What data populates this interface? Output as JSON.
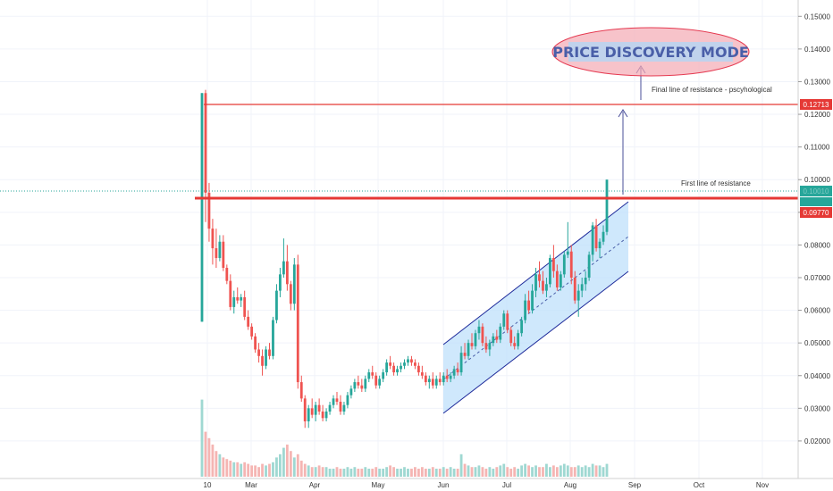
{
  "chart_data": {
    "type": "candlestick",
    "x_ticks": [
      "10",
      "Mar",
      "Apr",
      "May",
      "Jun",
      "Jul",
      "Aug",
      "Sep",
      "Oct",
      "Nov"
    ],
    "y_ticks": [
      "0.15000",
      "0.14000",
      "0.13000",
      "0.12000",
      "0.11000",
      "0.10000",
      "0.09000",
      "0.08000",
      "0.07000",
      "0.06000",
      "0.05000",
      "0.04000",
      "0.03000",
      "0.02000"
    ],
    "ylim": [
      0.0085,
      0.155
    ],
    "resistance_levels": [
      {
        "label": "Final line of resistance - pscyhological",
        "value": 0.12713,
        "value_label": "0.12713"
      },
      {
        "label": "First line of resistance",
        "value": 0.0977,
        "value_label": "0.09770"
      }
    ],
    "current_price_label": "0.10010",
    "title_badge": "PRICE DISCOVERY MODE",
    "candles": [
      [
        0.0565,
        0.1265,
        0.0565,
        0.1265
      ],
      [
        0.1265,
        0.1275,
        0.087,
        0.096
      ],
      [
        0.096,
        0.099,
        0.081,
        0.085
      ],
      [
        0.085,
        0.088,
        0.074,
        0.079
      ],
      [
        0.079,
        0.085,
        0.073,
        0.076
      ],
      [
        0.076,
        0.083,
        0.075,
        0.081
      ],
      [
        0.081,
        0.083,
        0.072,
        0.073
      ],
      [
        0.073,
        0.074,
        0.068,
        0.069
      ],
      [
        0.069,
        0.071,
        0.06,
        0.061
      ],
      [
        0.061,
        0.066,
        0.059,
        0.064
      ],
      [
        0.064,
        0.067,
        0.062,
        0.063
      ],
      [
        0.063,
        0.065,
        0.061,
        0.064
      ],
      [
        0.064,
        0.066,
        0.057,
        0.058
      ],
      [
        0.058,
        0.06,
        0.054,
        0.055
      ],
      [
        0.055,
        0.056,
        0.051,
        0.052
      ],
      [
        0.052,
        0.053,
        0.047,
        0.048
      ],
      [
        0.048,
        0.05,
        0.044,
        0.046
      ],
      [
        0.046,
        0.048,
        0.04,
        0.043
      ],
      [
        0.043,
        0.049,
        0.042,
        0.048
      ],
      [
        0.048,
        0.05,
        0.045,
        0.046
      ],
      [
        0.046,
        0.058,
        0.045,
        0.057
      ],
      [
        0.057,
        0.068,
        0.056,
        0.066
      ],
      [
        0.066,
        0.073,
        0.064,
        0.071
      ],
      [
        0.071,
        0.082,
        0.07,
        0.075
      ],
      [
        0.075,
        0.08,
        0.066,
        0.068
      ],
      [
        0.068,
        0.069,
        0.06,
        0.062
      ],
      [
        0.062,
        0.076,
        0.06,
        0.074
      ],
      [
        0.074,
        0.077,
        0.036,
        0.038
      ],
      [
        0.038,
        0.04,
        0.032,
        0.033
      ],
      [
        0.033,
        0.034,
        0.024,
        0.026
      ],
      [
        0.026,
        0.031,
        0.024,
        0.03
      ],
      [
        0.03,
        0.033,
        0.027,
        0.028
      ],
      [
        0.028,
        0.032,
        0.026,
        0.031
      ],
      [
        0.031,
        0.033,
        0.028,
        0.029
      ],
      [
        0.029,
        0.031,
        0.026,
        0.027
      ],
      [
        0.027,
        0.03,
        0.026,
        0.029
      ],
      [
        0.029,
        0.032,
        0.028,
        0.031
      ],
      [
        0.031,
        0.034,
        0.03,
        0.033
      ],
      [
        0.033,
        0.035,
        0.031,
        0.032
      ],
      [
        0.032,
        0.034,
        0.028,
        0.029
      ],
      [
        0.029,
        0.032,
        0.028,
        0.031
      ],
      [
        0.031,
        0.035,
        0.03,
        0.034
      ],
      [
        0.034,
        0.037,
        0.033,
        0.036
      ],
      [
        0.036,
        0.039,
        0.035,
        0.038
      ],
      [
        0.038,
        0.04,
        0.036,
        0.037
      ],
      [
        0.037,
        0.039,
        0.035,
        0.036
      ],
      [
        0.036,
        0.04,
        0.035,
        0.039
      ],
      [
        0.039,
        0.042,
        0.038,
        0.041
      ],
      [
        0.041,
        0.043,
        0.039,
        0.04
      ],
      [
        0.04,
        0.041,
        0.036,
        0.037
      ],
      [
        0.037,
        0.04,
        0.036,
        0.039
      ],
      [
        0.039,
        0.042,
        0.038,
        0.041
      ],
      [
        0.041,
        0.045,
        0.04,
        0.044
      ],
      [
        0.044,
        0.046,
        0.042,
        0.043
      ],
      [
        0.043,
        0.044,
        0.04,
        0.041
      ],
      [
        0.041,
        0.043,
        0.04,
        0.042
      ],
      [
        0.042,
        0.044,
        0.041,
        0.043
      ],
      [
        0.043,
        0.045,
        0.042,
        0.044
      ],
      [
        0.044,
        0.046,
        0.043,
        0.045
      ],
      [
        0.045,
        0.046,
        0.043,
        0.044
      ],
      [
        0.044,
        0.045,
        0.042,
        0.043
      ],
      [
        0.043,
        0.044,
        0.04,
        0.041
      ],
      [
        0.041,
        0.043,
        0.039,
        0.04
      ],
      [
        0.04,
        0.041,
        0.037,
        0.038
      ],
      [
        0.038,
        0.04,
        0.036,
        0.039
      ],
      [
        0.039,
        0.041,
        0.036,
        0.037
      ],
      [
        0.037,
        0.04,
        0.036,
        0.039
      ],
      [
        0.039,
        0.041,
        0.037,
        0.038
      ],
      [
        0.038,
        0.041,
        0.037,
        0.04
      ],
      [
        0.04,
        0.042,
        0.038,
        0.039
      ],
      [
        0.039,
        0.041,
        0.038,
        0.04
      ],
      [
        0.04,
        0.043,
        0.039,
        0.042
      ],
      [
        0.042,
        0.044,
        0.04,
        0.041
      ],
      [
        0.041,
        0.049,
        0.04,
        0.047
      ],
      [
        0.047,
        0.05,
        0.045,
        0.046
      ],
      [
        0.046,
        0.051,
        0.045,
        0.05
      ],
      [
        0.05,
        0.053,
        0.048,
        0.049
      ],
      [
        0.049,
        0.054,
        0.048,
        0.053
      ],
      [
        0.053,
        0.057,
        0.051,
        0.055
      ],
      [
        0.055,
        0.056,
        0.049,
        0.05
      ],
      [
        0.05,
        0.052,
        0.047,
        0.048
      ],
      [
        0.048,
        0.051,
        0.046,
        0.05
      ],
      [
        0.05,
        0.053,
        0.049,
        0.052
      ],
      [
        0.052,
        0.054,
        0.05,
        0.051
      ],
      [
        0.051,
        0.056,
        0.05,
        0.055
      ],
      [
        0.055,
        0.06,
        0.054,
        0.059
      ],
      [
        0.059,
        0.06,
        0.053,
        0.054
      ],
      [
        0.054,
        0.055,
        0.049,
        0.05
      ],
      [
        0.05,
        0.052,
        0.048,
        0.049
      ],
      [
        0.049,
        0.054,
        0.048,
        0.053
      ],
      [
        0.053,
        0.058,
        0.052,
        0.057
      ],
      [
        0.057,
        0.065,
        0.056,
        0.063
      ],
      [
        0.063,
        0.066,
        0.059,
        0.06
      ],
      [
        0.06,
        0.068,
        0.059,
        0.066
      ],
      [
        0.066,
        0.073,
        0.064,
        0.071
      ],
      [
        0.071,
        0.075,
        0.067,
        0.069
      ],
      [
        0.069,
        0.072,
        0.065,
        0.066
      ],
      [
        0.066,
        0.07,
        0.064,
        0.068
      ],
      [
        0.068,
        0.077,
        0.067,
        0.076
      ],
      [
        0.076,
        0.08,
        0.07,
        0.072
      ],
      [
        0.072,
        0.074,
        0.066,
        0.067
      ],
      [
        0.067,
        0.072,
        0.066,
        0.071
      ],
      [
        0.071,
        0.078,
        0.07,
        0.077
      ],
      [
        0.077,
        0.087,
        0.076,
        0.078
      ],
      [
        0.078,
        0.08,
        0.068,
        0.07
      ],
      [
        0.07,
        0.072,
        0.062,
        0.063
      ],
      [
        0.063,
        0.068,
        0.058,
        0.066
      ],
      [
        0.066,
        0.07,
        0.064,
        0.068
      ],
      [
        0.068,
        0.072,
        0.066,
        0.07
      ],
      [
        0.07,
        0.078,
        0.069,
        0.077
      ],
      [
        0.077,
        0.087,
        0.075,
        0.086
      ],
      [
        0.086,
        0.088,
        0.078,
        0.079
      ],
      [
        0.079,
        0.082,
        0.076,
        0.081
      ],
      [
        0.081,
        0.086,
        0.08,
        0.084
      ],
      [
        0.084,
        0.1,
        0.083,
        0.1
      ]
    ],
    "volumes": [
      48,
      28,
      24,
      20,
      16,
      14,
      12,
      11,
      10,
      9,
      9,
      8,
      9,
      8,
      7,
      7,
      6,
      8,
      7,
      8,
      9,
      12,
      14,
      18,
      20,
      16,
      12,
      14,
      10,
      8,
      7,
      6,
      6,
      7,
      6,
      6,
      5,
      5,
      6,
      5,
      5,
      6,
      5,
      6,
      5,
      5,
      6,
      5,
      5,
      6,
      5,
      5,
      6,
      7,
      6,
      5,
      5,
      6,
      5,
      5,
      6,
      5,
      6,
      5,
      5,
      6,
      5,
      5,
      6,
      5,
      6,
      5,
      5,
      14,
      8,
      7,
      6,
      6,
      7,
      6,
      5,
      6,
      5,
      6,
      7,
      8,
      6,
      5,
      6,
      5,
      7,
      8,
      7,
      6,
      7,
      6,
      6,
      8,
      6,
      7,
      6,
      7,
      8,
      7,
      6,
      6,
      7,
      6,
      7,
      6,
      8,
      7,
      7,
      6,
      8
    ],
    "volume_max": 50
  }
}
